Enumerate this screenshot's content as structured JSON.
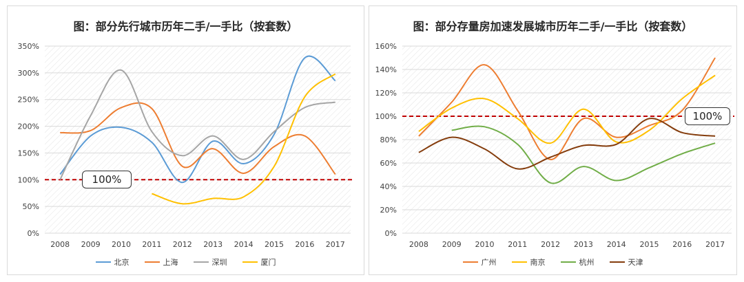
{
  "chart_data": [
    {
      "type": "line",
      "title": "图：部分先行城市历年二手/一手比（按套数）",
      "categories": [
        "2008",
        "2009",
        "2010",
        "2011",
        "2012",
        "2013",
        "2014",
        "2015",
        "2016",
        "2017"
      ],
      "y_ticks": [
        "0%",
        "50%",
        "100%",
        "150%",
        "200%",
        "250%",
        "300%",
        "350%"
      ],
      "ylim": [
        0,
        3.5
      ],
      "reference_line": {
        "value": 1.0,
        "label": "100%",
        "color": "#c00000"
      },
      "legend_position": "bottom",
      "grid": true,
      "series": [
        {
          "name": "北京",
          "color": "#5b9bd5",
          "values": [
            1.1,
            1.82,
            1.98,
            1.7,
            0.95,
            1.72,
            1.3,
            1.85,
            3.28,
            2.85
          ]
        },
        {
          "name": "上海",
          "color": "#ed7d31",
          "values": [
            1.88,
            1.92,
            2.35,
            2.33,
            1.25,
            1.58,
            1.12,
            1.62,
            1.82,
            1.1
          ]
        },
        {
          "name": "深圳",
          "color": "#a5a5a5",
          "values": [
            1.0,
            2.2,
            3.05,
            1.9,
            1.45,
            1.82,
            1.38,
            1.9,
            2.35,
            2.45
          ]
        },
        {
          "name": "厦门",
          "color": "#ffc000",
          "values": [
            null,
            null,
            null,
            0.74,
            0.55,
            0.65,
            0.68,
            1.25,
            2.55,
            2.98
          ]
        }
      ]
    },
    {
      "type": "line",
      "title": "图：部分存量房加速发展城市历年二手/一手比（按套数）",
      "categories": [
        "2008",
        "2009",
        "2010",
        "2011",
        "2012",
        "2013",
        "2014",
        "2015",
        "2016",
        "2017"
      ],
      "y_ticks": [
        "0%",
        "20%",
        "40%",
        "60%",
        "80%",
        "100%",
        "120%",
        "140%",
        "160%"
      ],
      "ylim": [
        0,
        1.6
      ],
      "reference_line": {
        "value": 1.0,
        "label": "100%",
        "color": "#c00000"
      },
      "legend_position": "bottom",
      "grid": true,
      "series": [
        {
          "name": "广州",
          "color": "#ed7d31",
          "values": [
            0.83,
            1.12,
            1.44,
            1.05,
            0.63,
            0.98,
            0.82,
            0.92,
            1.05,
            1.5
          ]
        },
        {
          "name": "南京",
          "color": "#ffc000",
          "values": [
            0.87,
            1.07,
            1.15,
            0.98,
            0.77,
            1.06,
            0.78,
            0.88,
            1.15,
            1.35
          ]
        },
        {
          "name": "杭州",
          "color": "#70ad47",
          "values": [
            null,
            0.88,
            0.91,
            0.76,
            0.43,
            0.57,
            0.45,
            0.56,
            0.68,
            0.77
          ]
        },
        {
          "name": "天津",
          "color": "#843c0c",
          "values": [
            0.69,
            0.82,
            0.72,
            0.55,
            0.65,
            0.75,
            0.76,
            0.98,
            0.86,
            0.83
          ]
        }
      ]
    }
  ]
}
